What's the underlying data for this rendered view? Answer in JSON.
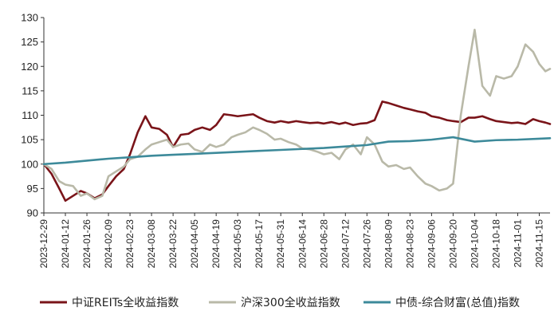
{
  "chart_data": {
    "type": "line",
    "title": "",
    "xlabel": "",
    "ylabel": "",
    "ylim": [
      90,
      130
    ],
    "yticks": [
      90,
      95,
      100,
      105,
      110,
      115,
      120,
      125,
      130
    ],
    "x_range": [
      "2023-12-29",
      "2024-11-22"
    ],
    "x_ticks": [
      "2023-12-29",
      "2024-01-12",
      "2024-01-26",
      "2024-02-09",
      "2024-02-23",
      "2024-03-08",
      "2024-03-22",
      "2024-04-05",
      "2024-04-19",
      "2024-05-03",
      "2024-05-17",
      "2024-05-31",
      "2024-06-14",
      "2024-06-28",
      "2024-07-12",
      "2024-07-26",
      "2024-08-09",
      "2024-08-23",
      "2024-09-06",
      "2024-09-20",
      "2024-10-04",
      "2024-10-18",
      "2024-11-01",
      "2024-11-15"
    ],
    "grid": false,
    "legend_position": "bottom",
    "series": [
      {
        "name": "中证REITs全收益指数",
        "color": "#7a1419",
        "points": [
          [
            "2023-12-29",
            100.0
          ],
          [
            "2024-01-03",
            98.0
          ],
          [
            "2024-01-08",
            95.0
          ],
          [
            "2024-01-12",
            92.5
          ],
          [
            "2024-01-17",
            93.5
          ],
          [
            "2024-01-22",
            94.5
          ],
          [
            "2024-01-26",
            94.0
          ],
          [
            "2024-01-31",
            93.0
          ],
          [
            "2024-02-05",
            93.8
          ],
          [
            "2024-02-09",
            95.5
          ],
          [
            "2024-02-14",
            97.5
          ],
          [
            "2024-02-19",
            99.0
          ],
          [
            "2024-02-23",
            102.0
          ],
          [
            "2024-02-28",
            106.5
          ],
          [
            "2024-03-04",
            109.8
          ],
          [
            "2024-03-08",
            107.5
          ],
          [
            "2024-03-13",
            107.2
          ],
          [
            "2024-03-18",
            106.0
          ],
          [
            "2024-03-22",
            103.5
          ],
          [
            "2024-03-27",
            106.0
          ],
          [
            "2024-04-01",
            106.2
          ],
          [
            "2024-04-05",
            107.0
          ],
          [
            "2024-04-10",
            107.5
          ],
          [
            "2024-04-15",
            107.0
          ],
          [
            "2024-04-19",
            108.0
          ],
          [
            "2024-04-24",
            110.2
          ],
          [
            "2024-04-29",
            110.0
          ],
          [
            "2024-05-03",
            109.8
          ],
          [
            "2024-05-08",
            110.0
          ],
          [
            "2024-05-13",
            110.2
          ],
          [
            "2024-05-17",
            109.5
          ],
          [
            "2024-05-22",
            108.8
          ],
          [
            "2024-05-27",
            108.5
          ],
          [
            "2024-05-31",
            108.8
          ],
          [
            "2024-06-05",
            108.5
          ],
          [
            "2024-06-10",
            108.8
          ],
          [
            "2024-06-14",
            108.6
          ],
          [
            "2024-06-19",
            108.4
          ],
          [
            "2024-06-24",
            108.5
          ],
          [
            "2024-06-28",
            108.3
          ],
          [
            "2024-07-03",
            108.6
          ],
          [
            "2024-07-08",
            108.2
          ],
          [
            "2024-07-12",
            108.5
          ],
          [
            "2024-07-17",
            108.0
          ],
          [
            "2024-07-22",
            108.3
          ],
          [
            "2024-07-26",
            108.4
          ],
          [
            "2024-07-31",
            109.0
          ],
          [
            "2024-08-05",
            112.8
          ],
          [
            "2024-08-09",
            112.5
          ],
          [
            "2024-08-14",
            112.0
          ],
          [
            "2024-08-19",
            111.5
          ],
          [
            "2024-08-23",
            111.2
          ],
          [
            "2024-08-28",
            110.8
          ],
          [
            "2024-09-02",
            110.5
          ],
          [
            "2024-09-06",
            109.8
          ],
          [
            "2024-09-11",
            109.5
          ],
          [
            "2024-09-16",
            109.0
          ],
          [
            "2024-09-20",
            108.8
          ],
          [
            "2024-09-25",
            108.6
          ],
          [
            "2024-09-30",
            109.5
          ],
          [
            "2024-10-04",
            109.5
          ],
          [
            "2024-10-09",
            109.8
          ],
          [
            "2024-10-14",
            109.2
          ],
          [
            "2024-10-18",
            108.8
          ],
          [
            "2024-10-23",
            108.6
          ],
          [
            "2024-10-28",
            108.4
          ],
          [
            "2024-11-01",
            108.5
          ],
          [
            "2024-11-06",
            108.2
          ],
          [
            "2024-11-11",
            109.2
          ],
          [
            "2024-11-15",
            108.8
          ],
          [
            "2024-11-19",
            108.5
          ],
          [
            "2024-11-22",
            108.2
          ]
        ]
      },
      {
        "name": "沪深300全收益指数",
        "color": "#b9b9a8",
        "points": [
          [
            "2023-12-29",
            100.0
          ],
          [
            "2024-01-03",
            99.0
          ],
          [
            "2024-01-08",
            96.5
          ],
          [
            "2024-01-12",
            95.8
          ],
          [
            "2024-01-17",
            95.5
          ],
          [
            "2024-01-22",
            93.5
          ],
          [
            "2024-01-26",
            94.0
          ],
          [
            "2024-01-31",
            92.8
          ],
          [
            "2024-02-05",
            93.5
          ],
          [
            "2024-02-09",
            97.5
          ],
          [
            "2024-02-14",
            98.5
          ],
          [
            "2024-02-19",
            99.5
          ],
          [
            "2024-02-23",
            101.0
          ],
          [
            "2024-02-28",
            101.5
          ],
          [
            "2024-03-04",
            103.0
          ],
          [
            "2024-03-08",
            104.0
          ],
          [
            "2024-03-13",
            104.5
          ],
          [
            "2024-03-18",
            105.0
          ],
          [
            "2024-03-22",
            103.5
          ],
          [
            "2024-03-27",
            104.0
          ],
          [
            "2024-04-01",
            104.2
          ],
          [
            "2024-04-05",
            103.0
          ],
          [
            "2024-04-10",
            102.5
          ],
          [
            "2024-04-15",
            104.0
          ],
          [
            "2024-04-19",
            103.5
          ],
          [
            "2024-04-24",
            104.0
          ],
          [
            "2024-04-29",
            105.5
          ],
          [
            "2024-05-03",
            106.0
          ],
          [
            "2024-05-08",
            106.5
          ],
          [
            "2024-05-13",
            107.5
          ],
          [
            "2024-05-17",
            107.0
          ],
          [
            "2024-05-22",
            106.2
          ],
          [
            "2024-05-27",
            105.0
          ],
          [
            "2024-05-31",
            105.2
          ],
          [
            "2024-06-05",
            104.5
          ],
          [
            "2024-06-10",
            104.0
          ],
          [
            "2024-06-14",
            103.2
          ],
          [
            "2024-06-19",
            103.0
          ],
          [
            "2024-06-24",
            102.5
          ],
          [
            "2024-06-28",
            102.0
          ],
          [
            "2024-07-03",
            102.3
          ],
          [
            "2024-07-08",
            101.0
          ],
          [
            "2024-07-12",
            103.0
          ],
          [
            "2024-07-17",
            104.0
          ],
          [
            "2024-07-22",
            102.0
          ],
          [
            "2024-07-26",
            105.5
          ],
          [
            "2024-07-31",
            104.0
          ],
          [
            "2024-08-05",
            100.5
          ],
          [
            "2024-08-09",
            99.5
          ],
          [
            "2024-08-14",
            99.8
          ],
          [
            "2024-08-19",
            99.0
          ],
          [
            "2024-08-23",
            99.3
          ],
          [
            "2024-08-28",
            97.5
          ],
          [
            "2024-09-02",
            96.0
          ],
          [
            "2024-09-06",
            95.5
          ],
          [
            "2024-09-11",
            94.6
          ],
          [
            "2024-09-16",
            95.0
          ],
          [
            "2024-09-20",
            96.0
          ],
          [
            "2024-09-25",
            110.0
          ],
          [
            "2024-09-30",
            120.0
          ],
          [
            "2024-10-04",
            127.5
          ],
          [
            "2024-10-09",
            116.0
          ],
          [
            "2024-10-14",
            114.0
          ],
          [
            "2024-10-18",
            118.0
          ],
          [
            "2024-10-23",
            117.5
          ],
          [
            "2024-10-28",
            118.0
          ],
          [
            "2024-11-01",
            120.0
          ],
          [
            "2024-11-06",
            124.5
          ],
          [
            "2024-11-11",
            123.0
          ],
          [
            "2024-11-15",
            120.5
          ],
          [
            "2024-11-19",
            119.0
          ],
          [
            "2024-11-22",
            119.5
          ]
        ]
      },
      {
        "name": "中债-综合财富(总值)指数",
        "color": "#3d8a9a",
        "points": [
          [
            "2023-12-29",
            100.0
          ],
          [
            "2024-01-12",
            100.3
          ],
          [
            "2024-01-26",
            100.7
          ],
          [
            "2024-02-09",
            101.1
          ],
          [
            "2024-02-23",
            101.4
          ],
          [
            "2024-03-08",
            101.7
          ],
          [
            "2024-03-22",
            101.9
          ],
          [
            "2024-04-05",
            102.1
          ],
          [
            "2024-04-19",
            102.3
          ],
          [
            "2024-05-03",
            102.5
          ],
          [
            "2024-05-17",
            102.7
          ],
          [
            "2024-05-31",
            102.9
          ],
          [
            "2024-06-14",
            103.1
          ],
          [
            "2024-06-28",
            103.3
          ],
          [
            "2024-07-12",
            103.6
          ],
          [
            "2024-07-26",
            103.9
          ],
          [
            "2024-08-09",
            104.6
          ],
          [
            "2024-08-23",
            104.7
          ],
          [
            "2024-09-06",
            105.0
          ],
          [
            "2024-09-20",
            105.5
          ],
          [
            "2024-10-04",
            104.6
          ],
          [
            "2024-10-18",
            104.9
          ],
          [
            "2024-11-01",
            105.0
          ],
          [
            "2024-11-15",
            105.2
          ],
          [
            "2024-11-22",
            105.3
          ]
        ]
      }
    ]
  }
}
